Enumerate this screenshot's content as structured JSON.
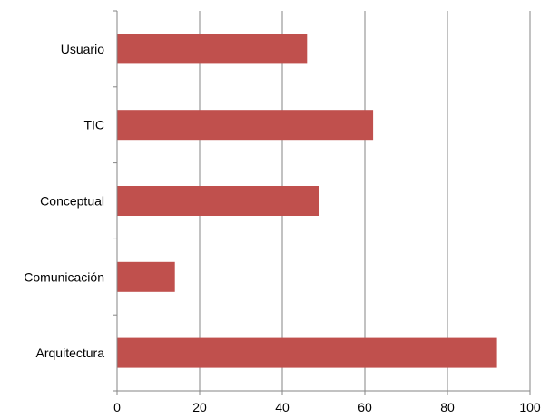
{
  "chart_data": {
    "type": "bar",
    "orientation": "horizontal",
    "title": "",
    "xlabel": "",
    "ylabel": "",
    "categories": [
      "Usuario",
      "TIC",
      "Conceptual",
      "Comunicación",
      "Arquitectura"
    ],
    "values": [
      46,
      62,
      49,
      14,
      92
    ],
    "xlim": [
      0,
      100
    ],
    "xticks": [
      "0",
      "20",
      "40",
      "60",
      "80",
      "100"
    ],
    "grid": "vertical",
    "legend": "none",
    "colors": {
      "bar": "#c0504d",
      "grid": "#868686",
      "axis": "#868686"
    }
  }
}
